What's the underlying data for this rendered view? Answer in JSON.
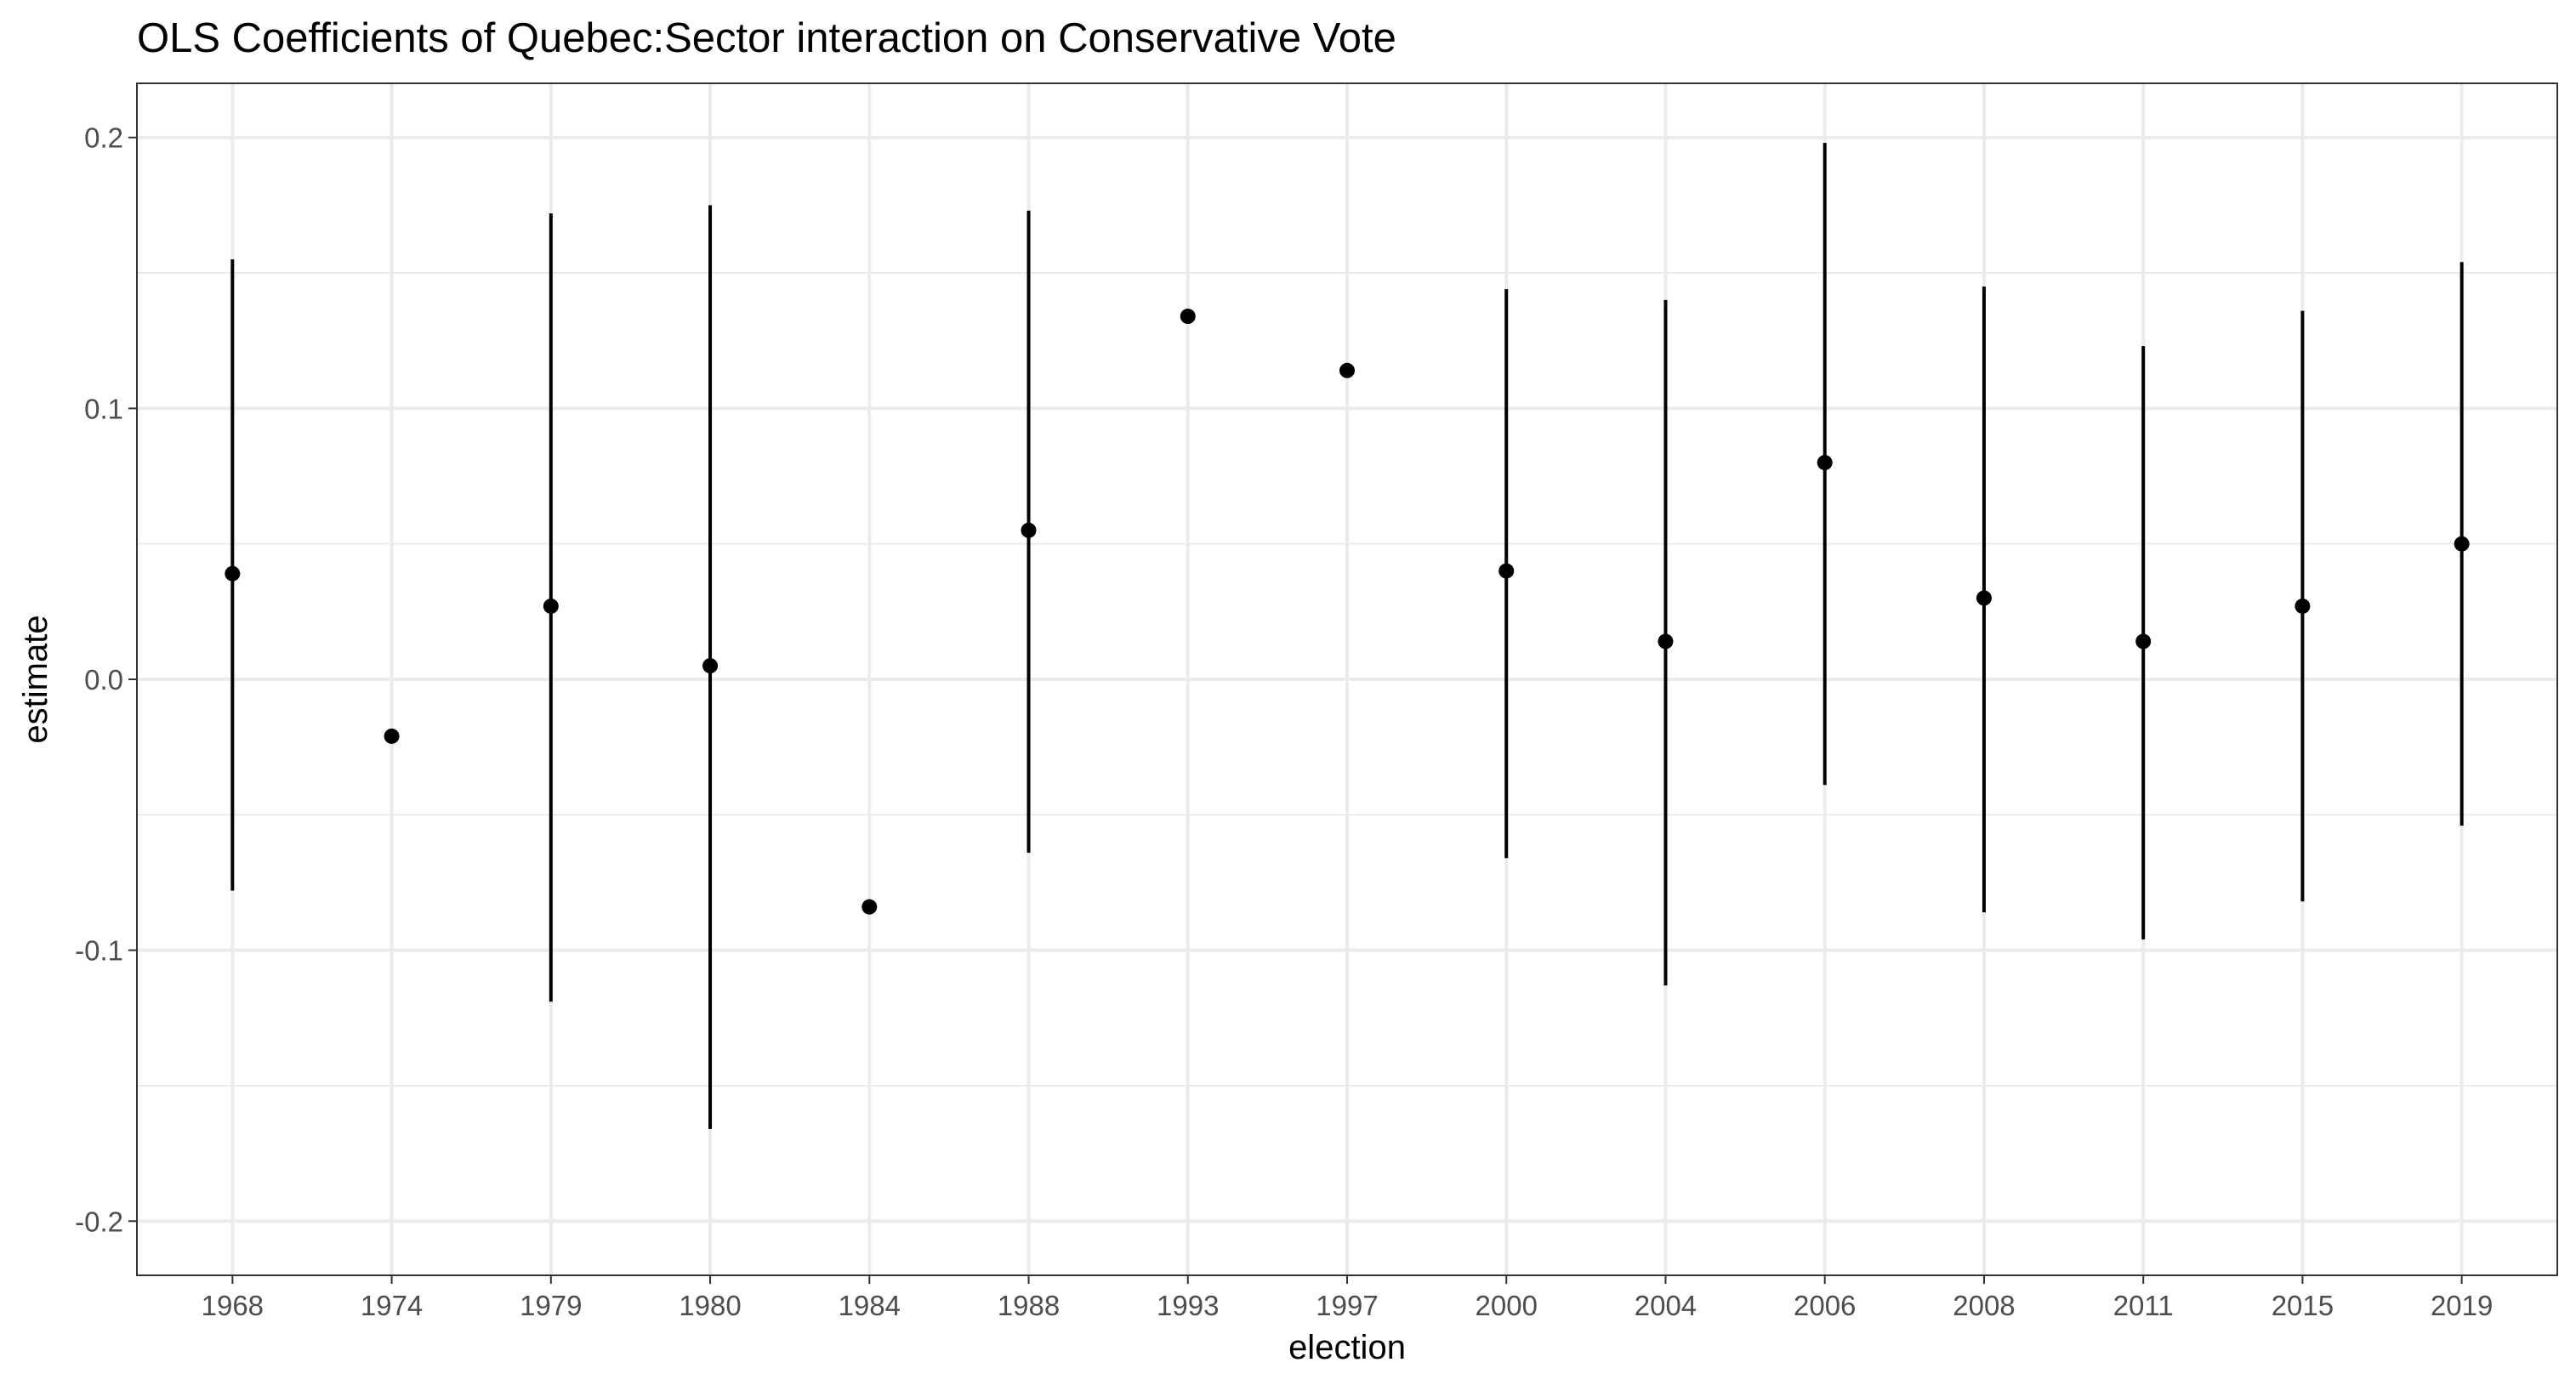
{
  "chart_data": {
    "type": "scatter",
    "title": "OLS Coefficients of Quebec:Sector interaction on Conservative Vote",
    "xlabel": "election",
    "ylabel": "estimate",
    "ylim": [
      -0.22,
      0.22
    ],
    "y_ticks": [
      -0.2,
      -0.1,
      0.0,
      0.1,
      0.2
    ],
    "y_tick_labels": [
      "-0.2",
      "-0.1",
      "0.0",
      "0.1",
      "0.2"
    ],
    "grid": true,
    "categories": [
      "1968",
      "1974",
      "1979",
      "1980",
      "1984",
      "1988",
      "1993",
      "1997",
      "2000",
      "2004",
      "2006",
      "2008",
      "2011",
      "2015",
      "2019"
    ],
    "estimate": [
      0.039,
      -0.021,
      0.027,
      0.005,
      -0.084,
      0.055,
      0.134,
      0.114,
      0.04,
      0.014,
      0.08,
      0.03,
      0.014,
      0.027,
      0.05
    ],
    "lower": [
      -0.078,
      null,
      -0.119,
      -0.166,
      null,
      -0.064,
      null,
      null,
      -0.066,
      -0.113,
      -0.039,
      -0.086,
      -0.096,
      -0.082,
      -0.054
    ],
    "upper": [
      0.155,
      null,
      0.172,
      0.175,
      null,
      0.173,
      null,
      null,
      0.144,
      0.14,
      0.198,
      0.145,
      0.123,
      0.136,
      0.154
    ],
    "colors": {
      "background": "#ffffff",
      "grid": "#ebebeb",
      "panel_border": "#333333",
      "ticks": "#333333",
      "tick_label": "#4d4d4d",
      "marks": "#000000"
    }
  }
}
